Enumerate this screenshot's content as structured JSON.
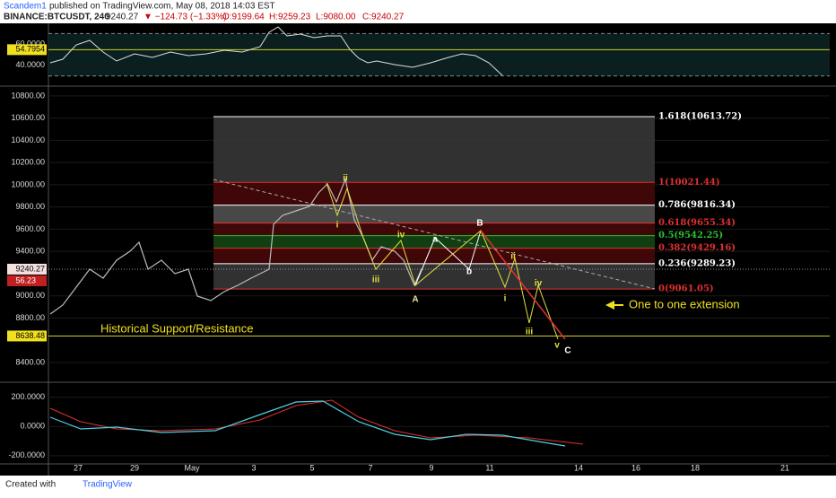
{
  "header": {
    "author": "Scandem1",
    "published": "published on TradingView.com, May 08, 2018 14:03 EST",
    "symbol": "BINANCE:BTCUSDT, 240",
    "last": "9240.27",
    "change": "▼ −124.73 (−1.33%)",
    "open": "O:9199.64",
    "high": "H:9259.23",
    "low": "L:9080.00",
    "close": "C:9240.27"
  },
  "rsi": {
    "ylim": [
      22,
      78
    ],
    "yticks": [
      {
        "value": 60,
        "label": "60.0000"
      },
      {
        "value": 40,
        "label": "40.0000"
      }
    ],
    "marker": {
      "value": 54.7954,
      "label": "54.7954"
    }
  },
  "price": {
    "ylim": [
      8230,
      10880
    ],
    "yticks": [
      {
        "value": 10800,
        "label": "10800.00"
      },
      {
        "value": 10600,
        "label": "10600.00"
      },
      {
        "value": 10400,
        "label": "10400.00"
      },
      {
        "value": 10200,
        "label": "10200.00"
      },
      {
        "value": 10000,
        "label": "10000.00"
      },
      {
        "value": 9800,
        "label": "9800.00"
      },
      {
        "value": 9600,
        "label": "9600.00"
      },
      {
        "value": 9400,
        "label": "9400.00"
      },
      {
        "value": 9000,
        "label": "9000.00"
      },
      {
        "value": 8800,
        "label": "8800.00"
      },
      {
        "value": 8400,
        "label": "8400.00"
      }
    ],
    "last": {
      "value": 9240.27,
      "label": "9240.27"
    },
    "countdown": "56.23",
    "support": {
      "value": 8638.48,
      "label": "8638.48"
    },
    "support_text": "Historical Support/Resistance",
    "fib": [
      {
        "value": 10613.72,
        "label": "1.618(10613.72)",
        "color": "#ffffff"
      },
      {
        "value": 10021.44,
        "label": "1(10021.44)",
        "color": "#e03030"
      },
      {
        "value": 9816.34,
        "label": "0.786(9816.34)",
        "color": "#ffffff"
      },
      {
        "value": 9655.34,
        "label": "0.618(9655.34)",
        "color": "#e03030"
      },
      {
        "value": 9542.25,
        "label": "0.5(9542.25)",
        "color": "#30c030"
      },
      {
        "value": 9429.16,
        "label": "0.382(9429.16)",
        "color": "#e03030"
      },
      {
        "value": 9289.23,
        "label": "0.236(9289.23)",
        "color": "#ffffff"
      },
      {
        "value": 9061.05,
        "label": "0(9061.05)",
        "color": "#e03030"
      }
    ],
    "annotation": "One to one extension"
  },
  "waves": [
    "ii",
    "i",
    "iii",
    "iv",
    "A",
    "a",
    "b",
    "B",
    "ii",
    "i",
    "iv",
    "iii",
    "v",
    "C"
  ],
  "macd": {
    "ylim": [
      -250,
      290
    ],
    "yticks": [
      {
        "value": 200,
        "label": "200.0000"
      },
      {
        "value": 0,
        "label": "0.0000"
      },
      {
        "value": -200,
        "label": "-200.0000"
      }
    ]
  },
  "dates": [
    "27",
    "29",
    "May",
    "3",
    "5",
    "7",
    "9",
    "11",
    "14",
    "16",
    "18",
    "21"
  ],
  "footer": {
    "created": "Created with",
    "brand": "TradingView"
  }
}
